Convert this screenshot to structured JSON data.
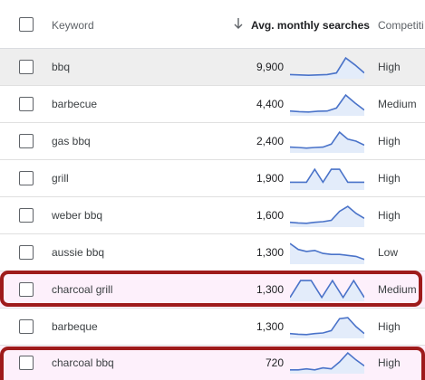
{
  "header": {
    "keyword_label": "Keyword",
    "avg_label": "Avg. monthly searches",
    "competition_label": "Competiti",
    "sort_icon": "arrow-down-icon"
  },
  "rows": [
    {
      "keyword": "bbq",
      "searches": "9,900",
      "competition": "High",
      "trend": [
        0.12,
        0.1,
        0.08,
        0.1,
        0.12,
        0.2,
        0.95,
        0.6,
        0.2
      ]
    },
    {
      "keyword": "barbecue",
      "searches": "4,400",
      "competition": "Medium",
      "trend": [
        0.15,
        0.12,
        0.1,
        0.14,
        0.15,
        0.3,
        0.95,
        0.55,
        0.2
      ]
    },
    {
      "keyword": "gas bbq",
      "searches": "2,400",
      "competition": "High",
      "trend": [
        0.2,
        0.18,
        0.15,
        0.18,
        0.2,
        0.35,
        0.95,
        0.6,
        0.5,
        0.3
      ]
    },
    {
      "keyword": "grill",
      "searches": "1,900",
      "competition": "High",
      "trend": [
        0.3,
        0.3,
        0.3,
        0.95,
        0.3,
        0.95,
        0.95,
        0.3,
        0.3,
        0.3
      ]
    },
    {
      "keyword": "weber bbq",
      "searches": "1,600",
      "competition": "High",
      "trend": [
        0.15,
        0.12,
        0.1,
        0.15,
        0.18,
        0.25,
        0.7,
        0.95,
        0.6,
        0.35
      ]
    },
    {
      "keyword": "aussie bbq",
      "searches": "1,300",
      "competition": "Low",
      "trend": [
        0.95,
        0.65,
        0.55,
        0.6,
        0.45,
        0.4,
        0.4,
        0.35,
        0.3,
        0.15
      ]
    },
    {
      "keyword": "charcoal grill",
      "searches": "1,300",
      "competition": "Medium",
      "trend": [
        0.1,
        0.95,
        0.95,
        0.1,
        0.95,
        0.1,
        0.95,
        0.1
      ]
    },
    {
      "keyword": "barbeque",
      "searches": "1,300",
      "competition": "High",
      "trend": [
        0.15,
        0.12,
        0.1,
        0.15,
        0.18,
        0.3,
        0.9,
        0.95,
        0.5,
        0.15
      ]
    },
    {
      "keyword": "charcoal bbq",
      "searches": "720",
      "competition": "High",
      "trend": [
        0.1,
        0.1,
        0.15,
        0.1,
        0.2,
        0.15,
        0.5,
        0.95,
        0.6,
        0.3
      ]
    }
  ],
  "highlighted_rows": [
    "charcoal grill",
    "charcoal bbq"
  ],
  "colors": {
    "sparkline": "#4a73c9",
    "sparkline_fill": "#e3ecfa",
    "highlight": "#9e1b1b"
  }
}
